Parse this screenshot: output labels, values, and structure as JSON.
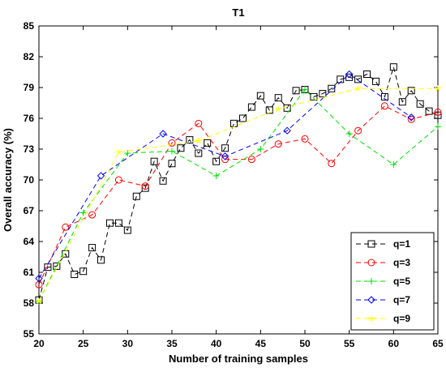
{
  "chart_data": {
    "type": "line",
    "title": "T1",
    "xlabel": "Number of training samples",
    "ylabel": "Overall accuracy (%)",
    "xlim": [
      20,
      65
    ],
    "ylim": [
      55,
      85
    ],
    "xticks": [
      20,
      25,
      30,
      35,
      40,
      45,
      50,
      55,
      60,
      65
    ],
    "yticks": [
      55,
      58,
      61,
      64,
      67,
      70,
      73,
      76,
      79,
      82,
      85
    ],
    "legend_position": "bottom-right",
    "series": [
      {
        "name": "q=1",
        "color": "#000000",
        "marker": "square",
        "x": [
          20,
          21,
          22,
          23,
          24,
          25,
          26,
          27,
          28,
          29,
          30,
          31,
          32,
          33,
          34,
          35,
          36,
          37,
          38,
          39,
          40,
          41,
          42,
          43,
          44,
          45,
          46,
          47,
          48,
          49,
          50,
          51,
          52,
          53,
          54,
          55,
          56,
          57,
          58,
          59,
          60,
          61,
          62,
          63,
          64,
          65
        ],
        "y": [
          58.3,
          61.5,
          61.6,
          62.8,
          60.8,
          61.1,
          63.4,
          62.2,
          65.8,
          65.8,
          65.1,
          68.4,
          69.2,
          71.8,
          69.9,
          71.6,
          73.1,
          73.9,
          72.6,
          73.6,
          71.8,
          73.1,
          75.5,
          76.0,
          77.1,
          78.2,
          76.8,
          78.0,
          77.0,
          78.7,
          78.8,
          78.1,
          78.4,
          78.9,
          79.8,
          80.0,
          79.8,
          80.3,
          79.6,
          78.1,
          81.0,
          77.6,
          78.7,
          77.4,
          76.7,
          76.3
        ]
      },
      {
        "name": "q=3",
        "color": "#ff0000",
        "marker": "circle",
        "x": [
          20,
          23,
          26,
          29,
          32,
          35,
          38,
          41,
          44,
          47,
          50,
          53,
          56,
          59,
          62,
          65
        ],
        "y": [
          59.8,
          65.4,
          66.6,
          70.0,
          69.4,
          73.6,
          75.5,
          72.0,
          72.0,
          73.5,
          74.0,
          71.6,
          74.8,
          77.2,
          75.9,
          76.6
        ]
      },
      {
        "name": "q=5",
        "color": "#00dd00",
        "marker": "plus",
        "x": [
          20,
          25,
          30,
          35,
          40,
          45,
          50,
          55,
          60,
          65
        ],
        "y": [
          58.2,
          66.8,
          72.6,
          72.8,
          70.4,
          73.0,
          78.8,
          74.5,
          71.5,
          75.2
        ]
      },
      {
        "name": "q=7",
        "color": "#0000ff",
        "marker": "diamond",
        "x": [
          20,
          27,
          34,
          41,
          48,
          55,
          62
        ],
        "y": [
          60.4,
          70.4,
          74.5,
          72.3,
          74.8,
          80.3,
          76.1
        ]
      },
      {
        "name": "q=9",
        "color": "#ffff00",
        "marker": "star",
        "x": [
          20,
          29,
          38,
          47,
          56,
          65
        ],
        "y": [
          58.2,
          72.7,
          73.8,
          76.9,
          78.9,
          78.9
        ]
      }
    ]
  }
}
